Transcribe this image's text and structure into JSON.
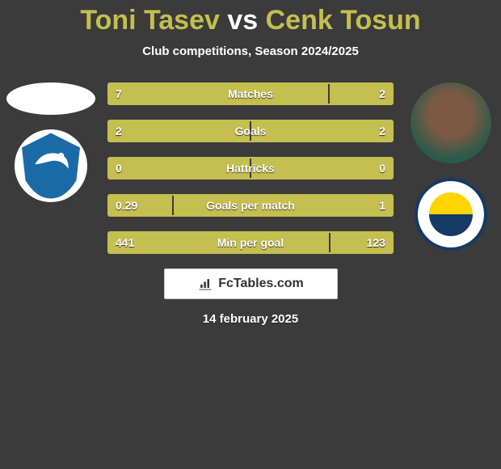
{
  "title": {
    "player1": "Toni Tasev",
    "vs": "vs",
    "player2": "Cenk Tosun"
  },
  "subtitle": "Club competitions, Season 2024/2025",
  "colors": {
    "accent": "#c4bf4e",
    "background": "#3b3b3b",
    "text": "#ffffff"
  },
  "stats": [
    {
      "label": "Matches",
      "v1": "7",
      "v2": "2",
      "n1": 7,
      "n2": 2,
      "pct1": 77.8
    },
    {
      "label": "Goals",
      "v1": "2",
      "v2": "2",
      "n1": 2,
      "n2": 2,
      "pct1": 50
    },
    {
      "label": "Hattricks",
      "v1": "0",
      "v2": "0",
      "n1": 0,
      "n2": 0,
      "pct1": 50
    },
    {
      "label": "Goals per match",
      "v1": "0.29",
      "v2": "1",
      "n1": 0.29,
      "n2": 1,
      "pct1": 22.5
    },
    {
      "label": "Min per goal",
      "v1": "441",
      "v2": "123",
      "n1": 441,
      "n2": 123,
      "pct1": 78.2
    }
  ],
  "brand": "FcTables.com",
  "date": "14 february 2025",
  "player1_badge": "erzurumspor",
  "player2_badge": "fenerbahce"
}
